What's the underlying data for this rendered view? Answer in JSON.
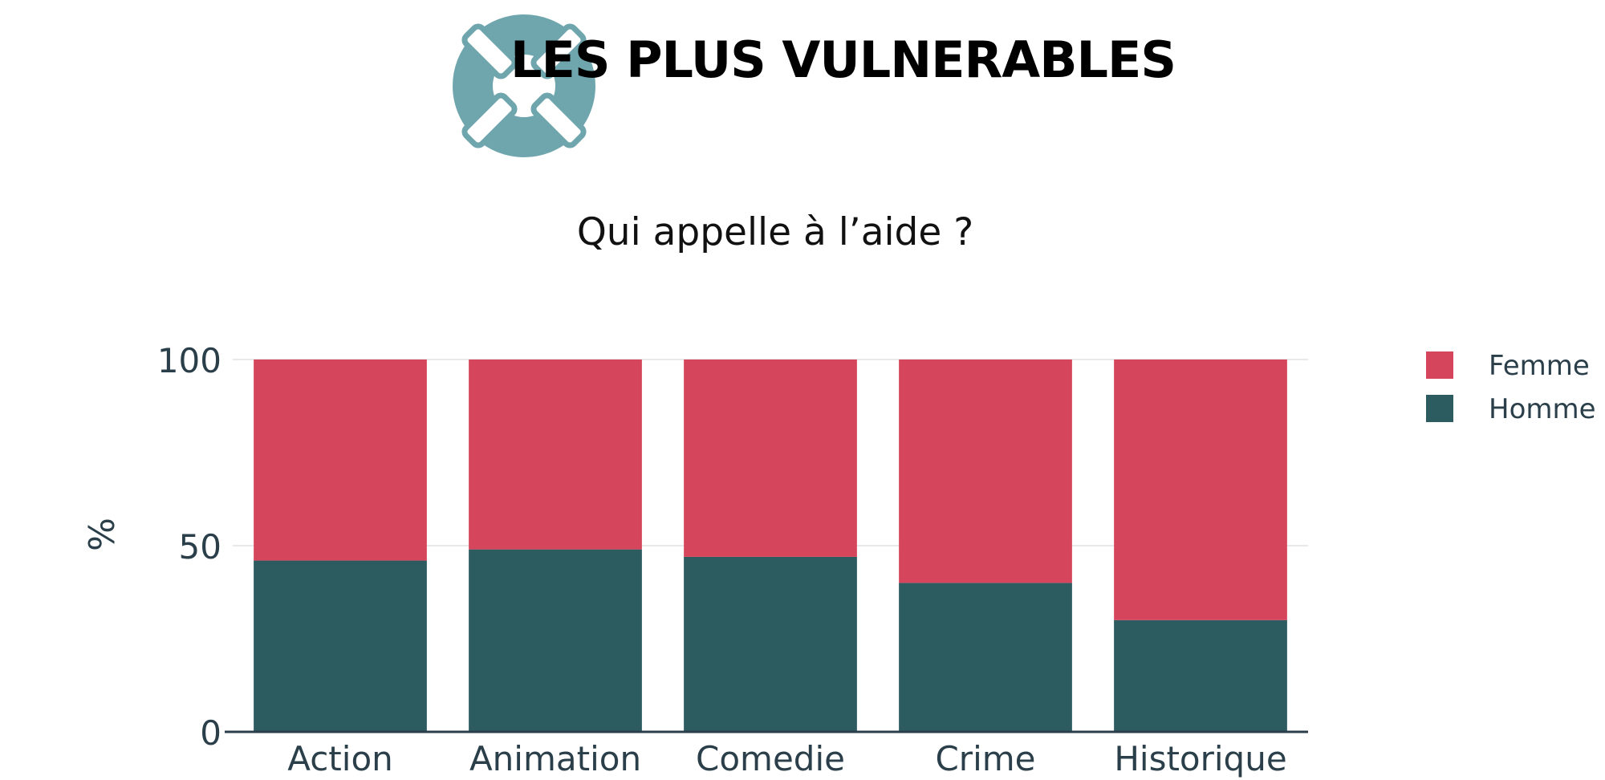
{
  "header": {
    "title": "LES PLUS VULNERABLES",
    "logo_icon": "lifebuoy-icon",
    "logo_color": "#6fa6ae"
  },
  "chart_data": {
    "type": "bar",
    "stacked": true,
    "title": "Qui appelle à l’aide ?",
    "xlabel": "",
    "ylabel": "%",
    "ylim": [
      0,
      100
    ],
    "yticks": [
      "0",
      "50",
      "100"
    ],
    "categories": [
      "Action",
      "Animation",
      "Comedie",
      "Crime",
      "Historique"
    ],
    "series": [
      {
        "name": "Homme",
        "values": [
          46,
          49,
          47,
          40,
          30
        ],
        "color": "#2c5b60"
      },
      {
        "name": "Femme",
        "values": [
          54,
          51,
          53,
          60,
          70
        ],
        "color": "#d5455c"
      }
    ],
    "legend_order": [
      "Femme",
      "Homme"
    ],
    "grid": true,
    "legend_position": "top-right"
  }
}
